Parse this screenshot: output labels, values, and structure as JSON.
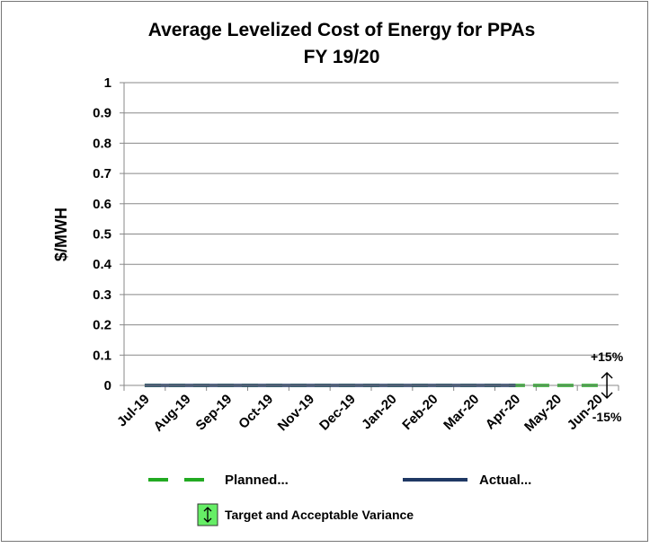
{
  "chart_data": {
    "type": "line",
    "title": "Average Levelized Cost of Energy for PPAs",
    "subtitle": "FY 19/20",
    "y_label": "$/MWH",
    "categories": [
      "Jul-19",
      "Aug-19",
      "Sep-19",
      "Oct-19",
      "Nov-19",
      "Dec-19",
      "Jan-20",
      "Feb-20",
      "Mar-20",
      "Apr-20",
      "May-20",
      "Jun-20"
    ],
    "series": [
      {
        "name": "Planned...",
        "color": "#22aa22",
        "dashed": true,
        "values": [
          0,
          0,
          0,
          0,
          0,
          0,
          0,
          0,
          0,
          0,
          0,
          0
        ]
      },
      {
        "name": "Actual...",
        "color": "#1f3864",
        "dashed": false,
        "values": [
          0,
          0,
          0,
          0,
          0,
          0,
          0,
          0,
          0,
          0,
          null,
          null
        ]
      }
    ],
    "target": {
      "name": "Target and Acceptable Variance",
      "color": "#66ee66",
      "values": [
        null,
        null,
        null,
        null,
        null,
        null,
        null,
        null,
        null,
        null,
        null,
        0
      ]
    },
    "annotations": [
      "+15%",
      "-15%"
    ],
    "ylim": [
      0,
      1
    ],
    "yticks": [
      0,
      0.1,
      0.2,
      0.3,
      0.4,
      0.5,
      0.6,
      0.7,
      0.8,
      0.9,
      1
    ],
    "grid": true
  }
}
